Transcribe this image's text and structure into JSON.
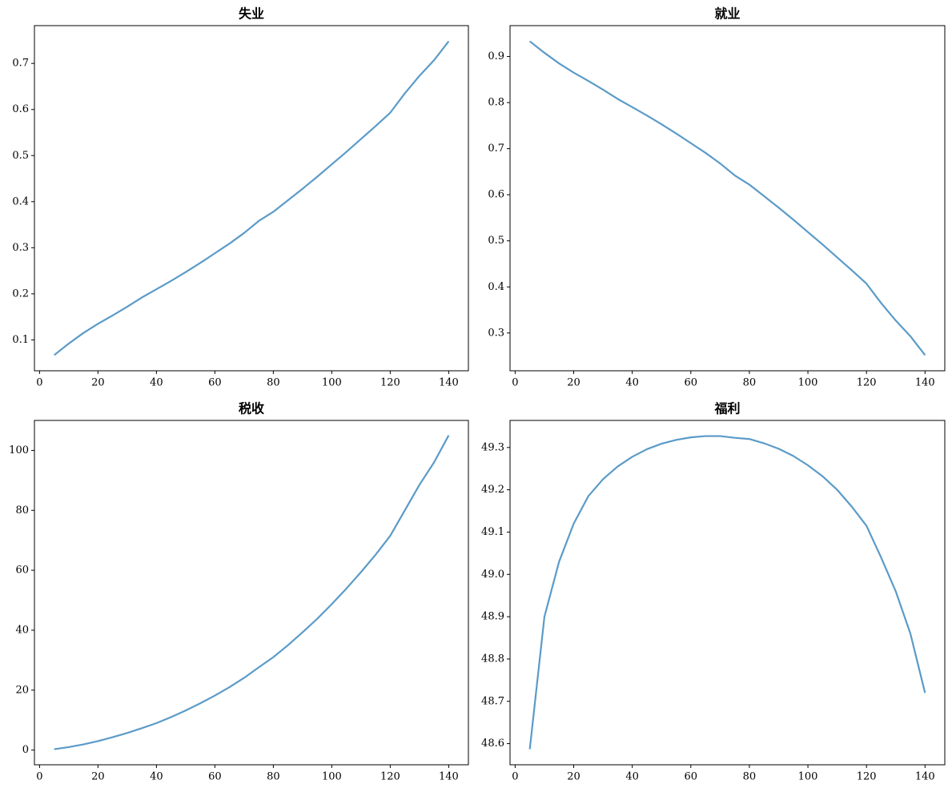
{
  "chart_data": [
    {
      "type": "line",
      "title": "失业",
      "color": "#5b9bc8",
      "x": [
        5,
        10,
        15,
        20,
        25,
        30,
        35,
        40,
        45,
        50,
        55,
        60,
        65,
        70,
        75,
        80,
        85,
        90,
        95,
        100,
        105,
        110,
        115,
        120,
        125,
        130,
        135,
        140
      ],
      "values": [
        0.067,
        0.092,
        0.115,
        0.135,
        0.153,
        0.172,
        0.192,
        0.21,
        0.228,
        0.247,
        0.267,
        0.288,
        0.309,
        0.332,
        0.358,
        0.378,
        0.403,
        0.428,
        0.454,
        0.481,
        0.508,
        0.536,
        0.564,
        0.593,
        0.635,
        0.673,
        0.707,
        0.748
      ],
      "xlim": [
        -1.75,
        146.75
      ],
      "xticks": [
        0,
        20,
        40,
        60,
        80,
        100,
        120,
        140
      ],
      "ylim": [
        0.033,
        0.782
      ],
      "yticks": [
        0.1,
        0.2,
        0.3,
        0.4,
        0.5,
        0.6,
        0.7
      ]
    },
    {
      "type": "line",
      "title": "就业",
      "color": "#5b9bc8",
      "x": [
        5,
        10,
        15,
        20,
        25,
        30,
        35,
        40,
        45,
        50,
        55,
        60,
        65,
        70,
        75,
        80,
        85,
        90,
        95,
        100,
        105,
        110,
        115,
        120,
        125,
        130,
        135,
        140
      ],
      "values": [
        0.933,
        0.908,
        0.885,
        0.865,
        0.847,
        0.828,
        0.808,
        0.79,
        0.772,
        0.753,
        0.733,
        0.712,
        0.691,
        0.668,
        0.642,
        0.622,
        0.597,
        0.572,
        0.546,
        0.519,
        0.492,
        0.464,
        0.436,
        0.407,
        0.365,
        0.327,
        0.293,
        0.252
      ],
      "xlim": [
        -1.75,
        146.75
      ],
      "xticks": [
        0,
        20,
        40,
        60,
        80,
        100,
        120,
        140
      ],
      "ylim": [
        0.218,
        0.967
      ],
      "yticks": [
        0.3,
        0.4,
        0.5,
        0.6,
        0.7,
        0.8,
        0.9
      ]
    },
    {
      "type": "line",
      "title": "税收",
      "color": "#5b9bc8",
      "x": [
        5,
        10,
        15,
        20,
        25,
        30,
        35,
        40,
        45,
        50,
        55,
        60,
        65,
        70,
        75,
        80,
        85,
        90,
        95,
        100,
        105,
        110,
        115,
        120,
        125,
        130,
        135,
        140
      ],
      "values": [
        0.3,
        1.0,
        1.9,
        3.0,
        4.3,
        5.7,
        7.3,
        9.0,
        11.0,
        13.2,
        15.6,
        18.2,
        21.0,
        24.1,
        27.6,
        31.0,
        35.0,
        39.3,
        43.8,
        48.7,
        53.9,
        59.4,
        65.2,
        71.5,
        80.0,
        88.5,
        96.0,
        105.0
      ],
      "xlim": [
        -1.75,
        146.75
      ],
      "xticks": [
        0,
        20,
        40,
        60,
        80,
        100,
        120,
        140
      ],
      "ylim": [
        -4.9,
        110.0
      ],
      "yticks": [
        0,
        20,
        40,
        60,
        80,
        100
      ]
    },
    {
      "type": "line",
      "title": "福利",
      "color": "#5b9bc8",
      "x": [
        5,
        10,
        15,
        20,
        25,
        30,
        35,
        40,
        45,
        50,
        55,
        60,
        65,
        70,
        75,
        80,
        85,
        90,
        95,
        100,
        105,
        110,
        115,
        120,
        125,
        130,
        135,
        140
      ],
      "values": [
        48.587,
        48.9,
        49.03,
        49.12,
        49.185,
        49.225,
        49.255,
        49.278,
        49.296,
        49.309,
        49.318,
        49.324,
        49.327,
        49.327,
        49.323,
        49.32,
        49.31,
        49.297,
        49.28,
        49.258,
        49.232,
        49.2,
        49.16,
        49.115,
        49.04,
        48.96,
        48.86,
        48.72
      ],
      "xlim": [
        -1.75,
        146.75
      ],
      "xticks": [
        0,
        20,
        40,
        60,
        80,
        100,
        120,
        140
      ],
      "ylim": [
        48.55,
        49.364
      ],
      "yticks": [
        48.6,
        48.7,
        48.8,
        48.9,
        {
          "value": 49,
          "label": "49.0"
        },
        49.1,
        49.2,
        49.3
      ]
    }
  ]
}
